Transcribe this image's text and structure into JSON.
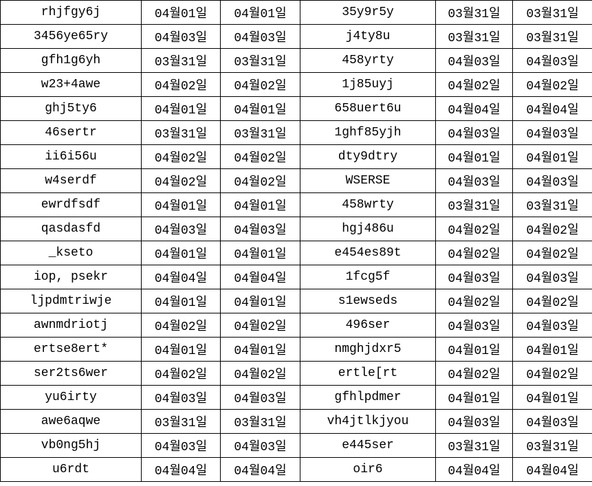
{
  "table": {
    "rows": [
      [
        "rhjfgy6j",
        "04월01일",
        "04월01일",
        "35y9r5y",
        "03월31일",
        "03월31일"
      ],
      [
        "3456ye65ry",
        "04월03일",
        "04월03일",
        "j4ty8u",
        "03월31일",
        "03월31일"
      ],
      [
        "gfh1g6yh",
        "03월31일",
        "03월31일",
        "458yrty",
        "04월03일",
        "04월03일"
      ],
      [
        "w23+4awe",
        "04월02일",
        "04월02일",
        "1j85uyj",
        "04월02일",
        "04월02일"
      ],
      [
        "ghj5ty6",
        "04월01일",
        "04월01일",
        "658uert6u",
        "04월04일",
        "04월04일"
      ],
      [
        "46sertr",
        "03월31일",
        "03월31일",
        "1ghf85yjh",
        "04월03일",
        "04월03일"
      ],
      [
        "ii6i56u",
        "04월02일",
        "04월02일",
        "dty9dtry",
        "04월01일",
        "04월01일"
      ],
      [
        "w4serdf",
        "04월02일",
        "04월02일",
        "WSERSE",
        "04월03일",
        "04월03일"
      ],
      [
        "ewrdfsdf",
        "04월01일",
        "04월01일",
        "458wrty",
        "03월31일",
        "03월31일"
      ],
      [
        "qasdasfd",
        "04월03일",
        "04월03일",
        "hgj486u",
        "04월02일",
        "04월02일"
      ],
      [
        "_kseto",
        "04월01일",
        "04월01일",
        "e454es89t",
        "04월02일",
        "04월02일"
      ],
      [
        "iop, psekr",
        "04월04일",
        "04월04일",
        "1fcg5f",
        "04월03일",
        "04월03일"
      ],
      [
        "ljpdmtriwje",
        "04월01일",
        "04월01일",
        "s1ewseds",
        "04월02일",
        "04월02일"
      ],
      [
        "awnmdriotj",
        "04월02일",
        "04월02일",
        "496ser",
        "04월03일",
        "04월03일"
      ],
      [
        "ertse8ert*",
        "04월01일",
        "04월01일",
        "nmghjdxr5",
        "04월01일",
        "04월01일"
      ],
      [
        "ser2ts6wer",
        "04월02일",
        "04월02일",
        "ertle[rt",
        "04월02일",
        "04월02일"
      ],
      [
        "yu6irty",
        "04월03일",
        "04월03일",
        "gfhlpdmer",
        "04월01일",
        "04월01일"
      ],
      [
        "awe6aqwe",
        "03월31일",
        "03월31일",
        "vh4jtlkjyou",
        "04월03일",
        "04월03일"
      ],
      [
        "vb0ng5hj",
        "04월03일",
        "04월03일",
        "e445ser",
        "03월31일",
        "03월31일"
      ],
      [
        "u6rdt",
        "04월04일",
        "04월04일",
        "oir6",
        "04월04일",
        "04월04일"
      ]
    ]
  }
}
